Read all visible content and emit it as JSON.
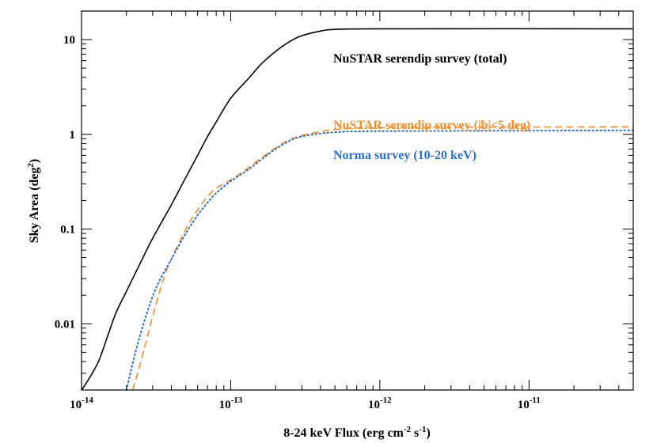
{
  "chart_data": {
    "type": "line",
    "xlabel": {
      "main": "8-24 keV Flux (erg cm",
      "sup1": "-2",
      "mid": " s",
      "sup2": "-1",
      "end": ")"
    },
    "ylabel": {
      "main": "Sky Area (deg",
      "sup": "2",
      "end": ")"
    },
    "x_scale": "log",
    "y_scale": "log",
    "xlim": [
      1e-14,
      5e-11
    ],
    "ylim": [
      0.002,
      20
    ],
    "grid": false,
    "x_ticks": [
      {
        "value": 1e-14,
        "base": "10",
        "exp": "-14"
      },
      {
        "value": 1e-13,
        "base": "10",
        "exp": "-13"
      },
      {
        "value": 1e-12,
        "base": "10",
        "exp": "-12"
      },
      {
        "value": 1e-11,
        "base": "10",
        "exp": "-11"
      }
    ],
    "y_ticks": [
      {
        "value": 0.01,
        "label": "0.01"
      },
      {
        "value": 0.1,
        "label": "0.1"
      },
      {
        "value": 1,
        "label": "1"
      },
      {
        "value": 10,
        "label": "10"
      }
    ],
    "series": [
      {
        "name": "NuSTAR serendip survey (total)",
        "color": "#000000",
        "dash": "solid",
        "points": [
          [
            1e-14,
            0.002
          ],
          [
            1.1e-14,
            0.0025
          ],
          [
            1.3e-14,
            0.004
          ],
          [
            1.5e-14,
            0.0075
          ],
          [
            1.7e-14,
            0.013
          ],
          [
            2e-14,
            0.022
          ],
          [
            2.5e-14,
            0.045
          ],
          [
            3e-14,
            0.08
          ],
          [
            4e-14,
            0.18
          ],
          [
            5e-14,
            0.35
          ],
          [
            6e-14,
            0.6
          ],
          [
            7e-14,
            0.95
          ],
          [
            8e-14,
            1.35
          ],
          [
            1e-13,
            2.4
          ],
          [
            1.3e-13,
            3.8
          ],
          [
            1.6e-13,
            5.5
          ],
          [
            2e-13,
            7.5
          ],
          [
            2.5e-13,
            9.6
          ],
          [
            3e-13,
            11.0
          ],
          [
            4e-13,
            12.3
          ],
          [
            5e-13,
            12.8
          ],
          [
            1e-12,
            13.0
          ],
          [
            5e-11,
            13.0
          ]
        ]
      },
      {
        "name": "NuSTAR serendip survey (|b|<5 deg)",
        "color": "#F28E2B",
        "dash": "dashed",
        "points": [
          [
            2.2e-14,
            0.002
          ],
          [
            2.5e-14,
            0.004
          ],
          [
            3e-14,
            0.012
          ],
          [
            3.5e-14,
            0.028
          ],
          [
            4e-14,
            0.048
          ],
          [
            5e-14,
            0.1
          ],
          [
            6e-14,
            0.16
          ],
          [
            7e-14,
            0.22
          ],
          [
            8e-14,
            0.27
          ],
          [
            1e-13,
            0.33
          ],
          [
            1.2e-13,
            0.4
          ],
          [
            1.5e-13,
            0.52
          ],
          [
            2e-13,
            0.72
          ],
          [
            2.5e-13,
            0.88
          ],
          [
            3e-13,
            0.97
          ],
          [
            4e-13,
            1.07
          ],
          [
            5e-13,
            1.12
          ],
          [
            1e-12,
            1.18
          ],
          [
            5e-11,
            1.2
          ]
        ]
      },
      {
        "name": "Norma survey (10-20 keV)",
        "color": "#2A6FD6",
        "dash": "dotted",
        "points": [
          [
            2e-14,
            0.002
          ],
          [
            2.3e-14,
            0.005
          ],
          [
            2.7e-14,
            0.012
          ],
          [
            3.2e-14,
            0.025
          ],
          [
            4e-14,
            0.048
          ],
          [
            5e-14,
            0.09
          ],
          [
            6e-14,
            0.14
          ],
          [
            7e-14,
            0.19
          ],
          [
            8e-14,
            0.24
          ],
          [
            1e-13,
            0.32
          ],
          [
            1.3e-13,
            0.42
          ],
          [
            1.7e-13,
            0.58
          ],
          [
            2e-13,
            0.7
          ],
          [
            2.5e-13,
            0.86
          ],
          [
            3e-13,
            0.95
          ],
          [
            4e-13,
            1.02
          ],
          [
            5e-13,
            1.05
          ],
          [
            1e-12,
            1.08
          ],
          [
            5e-11,
            1.1
          ]
        ]
      }
    ]
  }
}
